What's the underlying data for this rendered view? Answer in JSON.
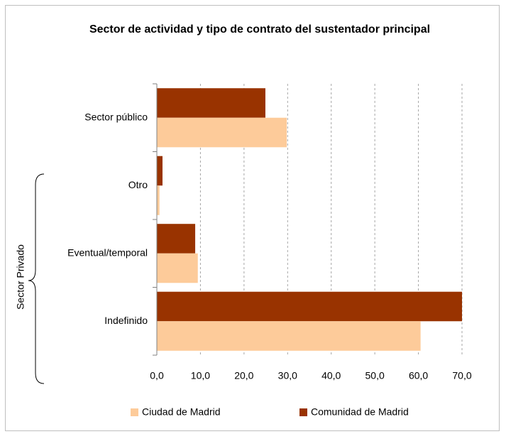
{
  "chart_data": {
    "type": "hbar",
    "title": "Sector de actividad y tipo de contrato del sustentador principal",
    "categories": [
      "Sector público",
      "Otro",
      "Eventual/temporal",
      "Indefinido"
    ],
    "series": [
      {
        "name": "Ciudad de Madrid",
        "color": "#fdcb9a",
        "values": [
          29.8,
          0.6,
          9.4,
          60.5
        ]
      },
      {
        "name": "Comunidad de Madrid",
        "color": "#993300",
        "values": [
          24.9,
          1.3,
          8.8,
          70.0
        ]
      }
    ],
    "xlim": [
      0,
      70
    ],
    "xticks": [
      {
        "value": 0,
        "label": "0,0"
      },
      {
        "value": 10,
        "label": "10,0"
      },
      {
        "value": 20,
        "label": "20,0"
      },
      {
        "value": 30,
        "label": "30,0"
      },
      {
        "value": 40,
        "label": "40,0"
      },
      {
        "value": 50,
        "label": "50,0"
      },
      {
        "value": 60,
        "label": "60,0"
      },
      {
        "value": 70,
        "label": "70,0"
      }
    ],
    "grid": true,
    "legend": "bottom",
    "annotation": "Sector Privado"
  }
}
